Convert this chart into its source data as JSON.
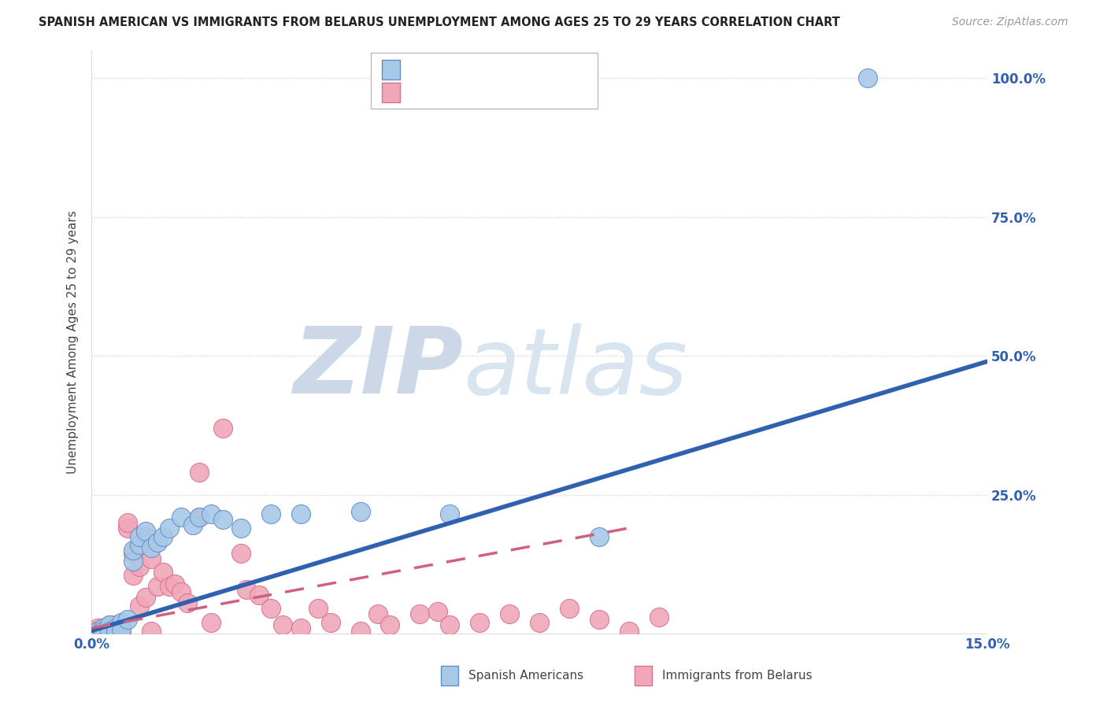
{
  "title": "SPANISH AMERICAN VS IMMIGRANTS FROM BELARUS UNEMPLOYMENT AMONG AGES 25 TO 29 YEARS CORRELATION CHART",
  "source": "Source: ZipAtlas.com",
  "ylabel_label": "Unemployment Among Ages 25 to 29 years",
  "x_min": 0.0,
  "x_max": 0.15,
  "y_min": 0.0,
  "y_max": 1.05,
  "x_ticks": [
    0.0,
    0.03,
    0.06,
    0.09,
    0.12,
    0.15
  ],
  "y_ticks": [
    0.0,
    0.25,
    0.5,
    0.75,
    1.0
  ],
  "y_tick_labels": [
    "",
    "25.0%",
    "50.0%",
    "75.0%",
    "100.0%"
  ],
  "background_color": "#ffffff",
  "watermark_zip": "ZIP",
  "watermark_atlas": "atlas",
  "watermark_color": "#ccd8e8",
  "blue_fill": "#a8c8e8",
  "blue_edge": "#6090c8",
  "pink_fill": "#f0a8b8",
  "pink_edge": "#d87090",
  "blue_line_color": "#3060b0",
  "pink_line_color": "#d06080",
  "scatter_blue_x": [
    0.001,
    0.002,
    0.002,
    0.003,
    0.003,
    0.004,
    0.004,
    0.005,
    0.005,
    0.006,
    0.007,
    0.007,
    0.008,
    0.008,
    0.009,
    0.01,
    0.011,
    0.012,
    0.013,
    0.015,
    0.017,
    0.018,
    0.02,
    0.022,
    0.025,
    0.03,
    0.035,
    0.045,
    0.06,
    0.085,
    0.13
  ],
  "scatter_blue_y": [
    0.005,
    0.01,
    0.005,
    0.015,
    0.005,
    0.01,
    0.005,
    0.02,
    0.008,
    0.025,
    0.13,
    0.15,
    0.16,
    0.175,
    0.185,
    0.155,
    0.165,
    0.175,
    0.19,
    0.21,
    0.195,
    0.21,
    0.215,
    0.205,
    0.19,
    0.215,
    0.215,
    0.22,
    0.215,
    0.175,
    1.0
  ],
  "scatter_pink_x": [
    0.001,
    0.001,
    0.002,
    0.002,
    0.003,
    0.003,
    0.004,
    0.004,
    0.005,
    0.005,
    0.006,
    0.006,
    0.007,
    0.007,
    0.008,
    0.008,
    0.009,
    0.009,
    0.01,
    0.01,
    0.011,
    0.012,
    0.013,
    0.014,
    0.015,
    0.016,
    0.018,
    0.018,
    0.02,
    0.022,
    0.025,
    0.026,
    0.028,
    0.03,
    0.032,
    0.035,
    0.038,
    0.04,
    0.045,
    0.048,
    0.05,
    0.055,
    0.058,
    0.06,
    0.065,
    0.07,
    0.075,
    0.08,
    0.085,
    0.09,
    0.095
  ],
  "scatter_pink_y": [
    0.01,
    0.005,
    0.01,
    0.005,
    0.015,
    0.005,
    0.015,
    0.005,
    0.01,
    0.005,
    0.19,
    0.2,
    0.145,
    0.105,
    0.12,
    0.05,
    0.065,
    0.175,
    0.135,
    0.005,
    0.085,
    0.11,
    0.085,
    0.09,
    0.075,
    0.055,
    0.29,
    0.21,
    0.02,
    0.37,
    0.145,
    0.08,
    0.07,
    0.045,
    0.015,
    0.01,
    0.045,
    0.02,
    0.005,
    0.035,
    0.015,
    0.035,
    0.04,
    0.015,
    0.02,
    0.035,
    0.02,
    0.045,
    0.025,
    0.005,
    0.03
  ],
  "blue_line_x": [
    0.0,
    0.15
  ],
  "blue_line_y": [
    0.005,
    0.49
  ],
  "pink_line_x": [
    0.0,
    0.09
  ],
  "pink_line_y": [
    0.01,
    0.19
  ]
}
